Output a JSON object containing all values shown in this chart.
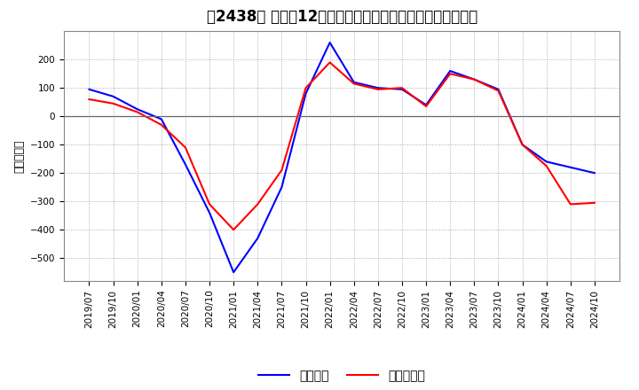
{
  "title_text": "［2438］ 利益の12か月移動合計の対前年同期増減額の推移",
  "ylabel": "（百万円）",
  "bg_color": "#ffffff",
  "plot_bg_color": "#ffffff",
  "grid_color": "#aaaaaa",
  "line_color_keijo": "#0000ff",
  "line_color_touki": "#ff0000",
  "legend_keijo": "経常利益",
  "legend_touki": "当期純利益",
  "x_labels": [
    "2019/07",
    "2019/10",
    "2020/01",
    "2020/04",
    "2020/07",
    "2020/10",
    "2021/01",
    "2021/04",
    "2021/07",
    "2021/10",
    "2022/01",
    "2022/04",
    "2022/07",
    "2022/10",
    "2023/01",
    "2023/04",
    "2023/07",
    "2023/10",
    "2024/01",
    "2024/04",
    "2024/07",
    "2024/10"
  ],
  "keijo": [
    95,
    70,
    25,
    -10,
    -170,
    -340,
    -550,
    -430,
    -250,
    80,
    260,
    120,
    100,
    95,
    40,
    160,
    130,
    95,
    -100,
    -160,
    -180,
    -200
  ],
  "touki": [
    60,
    45,
    15,
    -30,
    -110,
    -310,
    -400,
    -310,
    -190,
    100,
    190,
    115,
    95,
    100,
    35,
    150,
    130,
    90,
    -100,
    -175,
    -310,
    -305
  ],
  "ylim": [
    -580,
    300
  ],
  "yticks": [
    -500,
    -400,
    -300,
    -200,
    -100,
    0,
    100,
    200
  ],
  "title_fontsize": 12,
  "label_fontsize": 9,
  "tick_fontsize": 7.5,
  "legend_fontsize": 10,
  "linewidth": 1.5
}
